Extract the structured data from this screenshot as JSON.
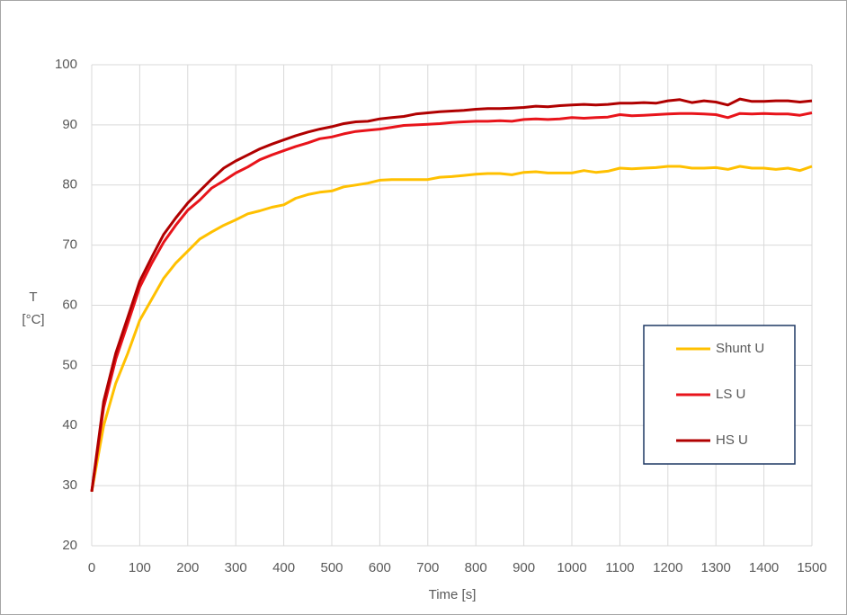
{
  "chart_data": {
    "type": "line",
    "x_label": "Time [s]",
    "y_label_lines": [
      "T",
      "[°C]"
    ],
    "x": [
      0,
      25,
      50,
      75,
      100,
      125,
      150,
      175,
      200,
      225,
      250,
      275,
      300,
      325,
      350,
      375,
      400,
      425,
      450,
      475,
      500,
      525,
      550,
      575,
      600,
      625,
      650,
      675,
      700,
      725,
      750,
      775,
      800,
      825,
      850,
      875,
      900,
      925,
      950,
      975,
      1000,
      1025,
      1050,
      1075,
      1100,
      1125,
      1150,
      1175,
      1200,
      1225,
      1250,
      1275,
      1300,
      1325,
      1350,
      1375,
      1400,
      1425,
      1450,
      1475,
      1500
    ],
    "series": [
      {
        "name": "Shunt U",
        "color": "#ffc000",
        "values": [
          29,
          40,
          47,
          52,
          57.5,
          61,
          64.5,
          67,
          69,
          71,
          72.2,
          73.3,
          74.2,
          75.2,
          75.7,
          76.3,
          76.7,
          77.8,
          78.4,
          78.8,
          79,
          79.7,
          80,
          80.3,
          80.8,
          80.9,
          80.9,
          80.9,
          80.9,
          81.3,
          81.4,
          81.6,
          81.8,
          81.9,
          81.9,
          81.7,
          82.1,
          82.2,
          82,
          82,
          82,
          82.4,
          82.1,
          82.3,
          82.8,
          82.7,
          82.8,
          82.9,
          83.1,
          83.1,
          82.8,
          82.8,
          82.9,
          82.6,
          83.1,
          82.8,
          82.8,
          82.6,
          82.8,
          82.4,
          83.1
        ]
      },
      {
        "name": "LS U",
        "color": "#e8141b",
        "values": [
          29,
          43,
          51,
          57,
          63,
          67,
          70.5,
          73.3,
          75.8,
          77.5,
          79.5,
          80.7,
          82,
          83,
          84.2,
          85,
          85.7,
          86.4,
          87,
          87.7,
          88,
          88.5,
          88.9,
          89.1,
          89.3,
          89.6,
          89.9,
          90,
          90.1,
          90.2,
          90.4,
          90.5,
          90.6,
          90.6,
          90.7,
          90.6,
          90.9,
          91,
          90.9,
          91,
          91.2,
          91.1,
          91.2,
          91.3,
          91.7,
          91.5,
          91.6,
          91.7,
          91.8,
          91.9,
          91.9,
          91.8,
          91.7,
          91.2,
          91.9,
          91.8,
          91.9,
          91.8,
          91.8,
          91.6,
          92
        ]
      },
      {
        "name": "HS U",
        "color": "#b00000",
        "values": [
          29,
          44,
          52,
          58,
          64,
          68,
          71.8,
          74.5,
          77,
          79,
          81,
          82.8,
          84,
          85,
          86,
          86.8,
          87.5,
          88.2,
          88.8,
          89.3,
          89.7,
          90.2,
          90.5,
          90.6,
          91,
          91.2,
          91.4,
          91.8,
          92,
          92.2,
          92.3,
          92.4,
          92.6,
          92.7,
          92.7,
          92.8,
          92.9,
          93.1,
          93,
          93.2,
          93.3,
          93.4,
          93.3,
          93.4,
          93.6,
          93.6,
          93.7,
          93.6,
          94,
          94.2,
          93.7,
          94,
          93.8,
          93.3,
          94.3,
          93.9,
          93.9,
          94,
          94,
          93.8,
          94
        ]
      }
    ],
    "xlim": [
      0,
      1500
    ],
    "xticks": [
      0,
      100,
      200,
      300,
      400,
      500,
      600,
      700,
      800,
      900,
      1000,
      1100,
      1200,
      1300,
      1400,
      1500
    ],
    "ylim": [
      20,
      100
    ],
    "yticks": [
      20,
      30,
      40,
      50,
      60,
      70,
      80,
      90,
      100
    ],
    "grid": true,
    "legend": "right"
  }
}
